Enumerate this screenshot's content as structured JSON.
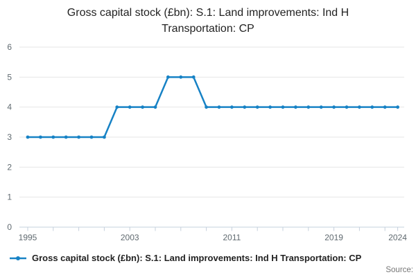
{
  "title": {
    "line1": "Gross capital stock (£bn): S.1: Land improvements: Ind H",
    "line2": "Transportation: CP"
  },
  "legend": {
    "label": "Gross capital stock (£bn): S.1: Land improvements: Ind H Transportation: CP"
  },
  "footer": {
    "source_label": "Source:"
  },
  "colors": {
    "accent": "#1782c5",
    "gridline": "#e6e6e6",
    "axis": "#c5d0dc",
    "tick_label": "#606a70"
  },
  "chart_data": {
    "type": "line",
    "title": "Gross capital stock (£bn): S.1: Land improvements: Ind H Transportation: CP",
    "xlabel": "",
    "ylabel": "",
    "x": [
      1995,
      1996,
      1997,
      1998,
      1999,
      2000,
      2001,
      2002,
      2003,
      2004,
      2005,
      2006,
      2007,
      2008,
      2009,
      2010,
      2011,
      2012,
      2013,
      2014,
      2015,
      2016,
      2017,
      2018,
      2019,
      2020,
      2021,
      2022,
      2023,
      2024
    ],
    "series": [
      {
        "name": "Gross capital stock (£bn): S.1: Land improvements: Ind H Transportation: CP",
        "values": [
          3,
          3,
          3,
          3,
          3,
          3,
          3,
          4,
          4,
          4,
          4,
          5,
          5,
          5,
          4,
          4,
          4,
          4,
          4,
          4,
          4,
          4,
          4,
          4,
          4,
          4,
          4,
          4,
          4,
          4
        ]
      }
    ],
    "ylim": [
      0,
      6
    ],
    "yticks": [
      0,
      1,
      2,
      3,
      4,
      5,
      6
    ],
    "xticks_minor": [
      1995,
      1997,
      1999,
      2001,
      2003,
      2005,
      2007,
      2009,
      2011,
      2013,
      2015,
      2017,
      2019,
      2021,
      2023,
      2024
    ],
    "xtick_labels": [
      1995,
      2003,
      2011,
      2019,
      2024
    ],
    "grid": true,
    "legend_position": "bottom-left",
    "marker": "circle"
  }
}
